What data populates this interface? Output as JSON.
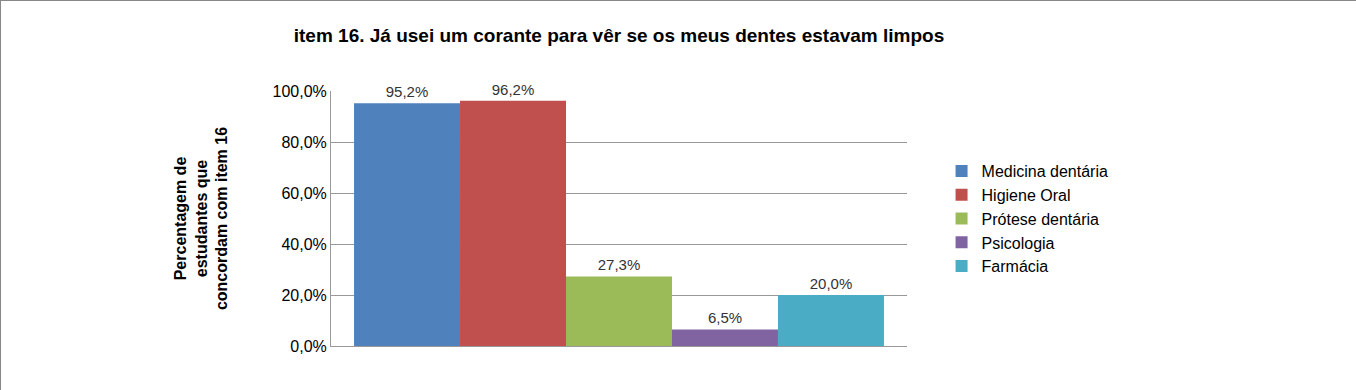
{
  "chart_data": {
    "type": "bar",
    "title": "item 16. Já usei um corante para vêr se os meus dentes estavam limpos",
    "y_label": "Percentagem de\nestudantes que\nconcordam com item 16",
    "categories": [
      null
    ],
    "series": [
      {
        "name": "Medicina dentária",
        "color": "#4F81BD",
        "values": [
          95.2
        ],
        "value_labels": [
          "95,2%"
        ]
      },
      {
        "name": "Higiene Oral",
        "color": "#C0504D",
        "values": [
          96.2
        ],
        "value_labels": [
          "96,2%"
        ]
      },
      {
        "name": "Prótese dentária",
        "color": "#9BBB59",
        "values": [
          27.3
        ],
        "value_labels": [
          "27,3%"
        ]
      },
      {
        "name": "Psicologia",
        "color": "#8064A2",
        "values": [
          6.5
        ],
        "value_labels": [
          "6,5%"
        ]
      },
      {
        "name": "Farmácia",
        "color": "#4BACC6",
        "values": [
          20.0
        ],
        "value_labels": [
          "20,0%"
        ]
      }
    ],
    "ylim": [
      0,
      100
    ],
    "yticks": [
      {
        "value": 0,
        "label": "0,0%"
      },
      {
        "value": 20,
        "label": "20,0%"
      },
      {
        "value": 40,
        "label": "40,0%"
      },
      {
        "value": 60,
        "label": "60,0%"
      },
      {
        "value": 80,
        "label": "80,0%"
      },
      {
        "value": 100,
        "label": "100,0%"
      }
    ],
    "grid": true,
    "legend": "right",
    "data_labels": true,
    "tick_labels": "y"
  }
}
